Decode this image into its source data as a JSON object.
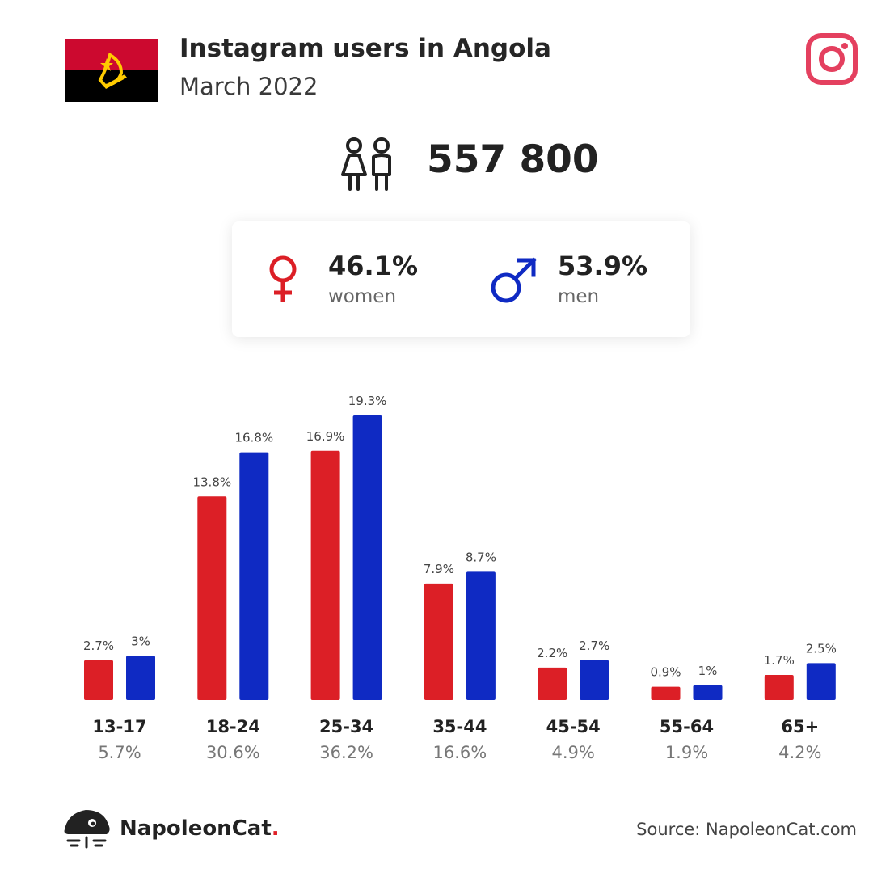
{
  "header": {
    "title": "Instagram users in Angola",
    "subtitle": "March 2022"
  },
  "flag_icon": "angola-flag",
  "platform_icon": "instagram-icon",
  "total": {
    "icon": "users-icon",
    "value": "557 800"
  },
  "gender": {
    "women": {
      "icon": "female-symbol-icon",
      "percent": "46.1%",
      "label": "women"
    },
    "men": {
      "icon": "male-symbol-icon",
      "percent": "53.9%",
      "label": "men"
    }
  },
  "colors": {
    "women": "#dc1f26",
    "men": "#0f2ac3",
    "instagram": "#e4405f",
    "flag_red": "#cc092f",
    "flag_black": "#000000",
    "flag_yellow": "#ffcb00"
  },
  "chart_data": {
    "type": "bar",
    "title": "",
    "xlabel": "",
    "ylabel": "",
    "categories": [
      "13-17",
      "18-24",
      "25-34",
      "35-44",
      "45-54",
      "55-64",
      "65+"
    ],
    "category_totals": [
      "5.7%",
      "30.6%",
      "36.2%",
      "16.6%",
      "4.9%",
      "1.9%",
      "4.2%"
    ],
    "series": [
      {
        "color": "#dc1f26",
        "values": [
          2.7,
          13.8,
          16.9,
          7.9,
          2.2,
          0.9,
          1.7
        ],
        "labels": [
          "2.7%",
          "13.8%",
          "16.9%",
          "7.9%",
          "2.2%",
          "0.9%",
          "1.7%"
        ]
      },
      {
        "color": "#0f2ac3",
        "values": [
          3,
          16.8,
          19.3,
          8.7,
          2.7,
          1,
          2.5
        ],
        "labels": [
          "3%",
          "16.8%",
          "19.3%",
          "8.7%",
          "2.7%",
          "1%",
          "2.5%"
        ]
      }
    ],
    "ylim": [
      0,
      19.3
    ],
    "grid": false,
    "legend": "none"
  },
  "footer": {
    "logo_icon": "napoleoncat-logo-icon",
    "brand": "NapoleonCat",
    "brand_dot": ".",
    "source": "Source: NapoleonCat.com"
  }
}
